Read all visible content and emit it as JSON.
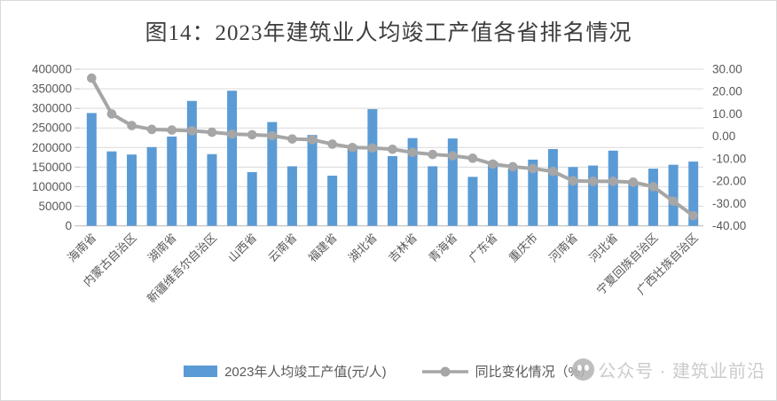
{
  "title": "图14：2023年建筑业人均竣工产值各省排名情况",
  "legend": {
    "bar_label": "2023年人均竣工产值(元/人)",
    "line_label": "同比变化情况（%）"
  },
  "watermark": {
    "text": "公众号 · 建筑业前沿",
    "icon": "wechat-official-account-logo"
  },
  "colors": {
    "bar": "#5B9BD5",
    "line": "#A6A6A6",
    "gridline": "#D9D9D9",
    "axis_line": "#C0C0C0",
    "axis_text": "#595959",
    "title_text": "#3D3D3D",
    "legend_text": "#595959",
    "watermark_text": "#C9C9C9",
    "background": "#FFFFFF",
    "border": "#D9D9D9"
  },
  "chart_data": {
    "type": "bar",
    "combo": "bar+line",
    "title": "图14：2023年建筑业人均竣工产值各省排名情况",
    "grid": "horizontal",
    "legend_position": "bottom",
    "categories": [
      "海南省",
      "",
      "内蒙古自治区",
      "",
      "湖南省",
      "",
      "新疆维吾尔自治区",
      "",
      "山西省",
      "",
      "云南省",
      "",
      "福建省",
      "",
      "湖北省",
      "",
      "吉林省",
      "",
      "青海省",
      "",
      "广东省",
      "",
      "重庆市",
      "",
      "河南省",
      "",
      "河北省",
      "",
      "宁夏回族自治区",
      "",
      "广西壮族自治区"
    ],
    "series": [
      {
        "name": "2023年人均竣工产值(元/人)",
        "type": "bar",
        "axis": "left",
        "values": [
          288000,
          190000,
          182000,
          201000,
          228000,
          319000,
          183000,
          345000,
          137000,
          265000,
          152000,
          232000,
          128000,
          206000,
          298000,
          178000,
          224000,
          152000,
          223000,
          125000,
          164000,
          146000,
          169000,
          196000,
          150000,
          154000,
          192000,
          108000,
          146000,
          156000,
          164000
        ]
      },
      {
        "name": "同比变化情况（%）",
        "type": "line",
        "axis": "right",
        "values": [
          26.0,
          10.0,
          4.8,
          3.1,
          2.8,
          2.5,
          1.8,
          1.0,
          0.7,
          0.3,
          -1.2,
          -1.5,
          -3.5,
          -5.0,
          -5.2,
          -5.8,
          -7.2,
          -8.1,
          -8.7,
          -9.8,
          -12.4,
          -13.6,
          -14.4,
          -15.7,
          -19.9,
          -20.1,
          -20.1,
          -20.5,
          -22.5,
          -29.0,
          -35.5
        ]
      }
    ],
    "left_axis": {
      "min": 0,
      "max": 400000,
      "labels": [
        "400000",
        "350000",
        "300000",
        "250000",
        "200000",
        "150000",
        "100000",
        "50000",
        "0"
      ]
    },
    "right_axis": {
      "min": -40,
      "max": 30,
      "labels": [
        "30.00",
        "20.00",
        "10.00",
        "0.00",
        "-10.00",
        "-20.00",
        "-30.00",
        "-40.00"
      ]
    }
  }
}
